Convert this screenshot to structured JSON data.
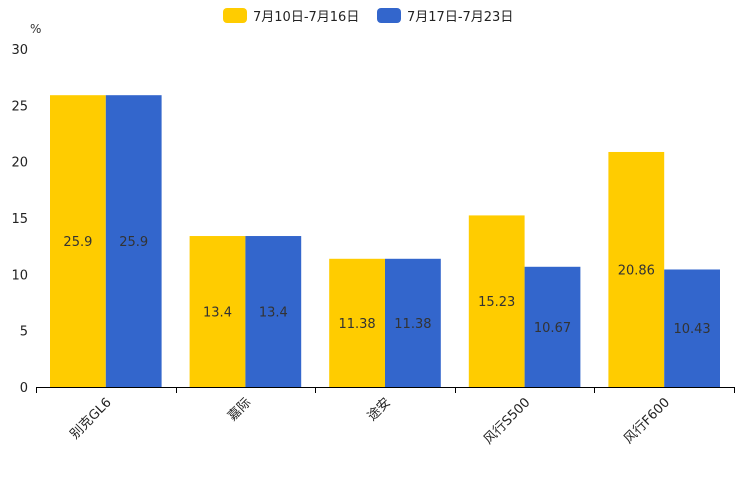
{
  "chart_data": {
    "type": "bar",
    "title": "",
    "xlabel": "",
    "ylabel": "%",
    "ylim": [
      0,
      30
    ],
    "yticks": [
      0,
      5,
      10,
      15,
      20,
      25,
      30
    ],
    "categories": [
      "别克GL6",
      "嘉际",
      "途安",
      "风行S500",
      "风行F600"
    ],
    "series": [
      {
        "name": "7月10日-7月16日",
        "color": "#FFCC00",
        "values": [
          25.9,
          13.4,
          11.38,
          15.23,
          20.86
        ],
        "labels": [
          "25.9",
          "13.4",
          "11.38",
          "15.23",
          "20.86"
        ]
      },
      {
        "name": "7月17日-7月23日",
        "color": "#3366CC",
        "values": [
          25.9,
          13.4,
          11.38,
          10.67,
          10.43
        ],
        "labels": [
          "25.9",
          "13.4",
          "11.38",
          "10.67",
          "10.43"
        ]
      }
    ],
    "legend": "top-center",
    "grid": false
  }
}
